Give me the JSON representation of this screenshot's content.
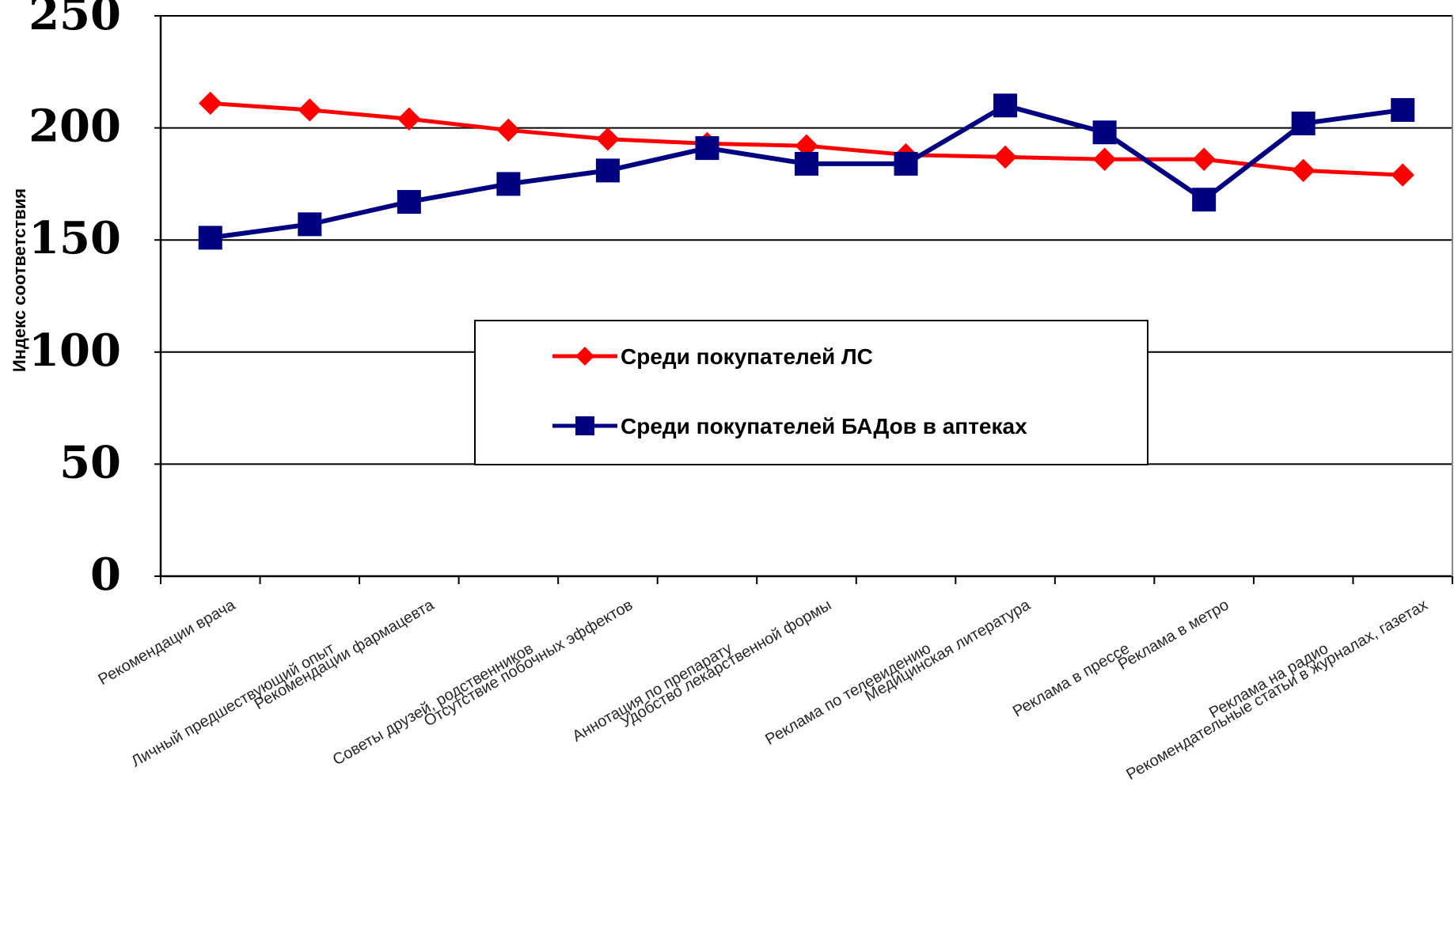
{
  "chart_data": {
    "type": "line",
    "ylabel": "Индекс соответствия",
    "ylim": [
      0,
      250
    ],
    "yticks": [
      "0",
      "50",
      "100",
      "150",
      "200",
      "250"
    ],
    "grid": true,
    "legend_position": "center",
    "categories": [
      "Рекомендации врача",
      "Личный предшествующий опыт",
      "Рекомендации фармацевта",
      "Советы друзей, родственников",
      "Отсутствие побочных эффектов",
      "Аннотация по препарату",
      "Удобство лекарственной формы",
      "Реклама по телевидению",
      "Медицинская литература",
      "Реклама в прессе",
      "Реклама в метро",
      "Реклама на радио",
      "Рекомендательные статьи в журналах, газетах"
    ],
    "series": [
      {
        "name": "Среди покупателей ЛС",
        "color": "#ff0000",
        "marker": "diamond",
        "values": [
          211,
          208,
          204,
          199,
          195,
          193,
          192,
          188,
          187,
          186,
          186,
          181,
          179
        ]
      },
      {
        "name": "Среди покупателей БАДов в аптеках",
        "color": "#000080",
        "marker": "square",
        "values": [
          151,
          157,
          167,
          175,
          181,
          191,
          184,
          184,
          210,
          198,
          168,
          202,
          208
        ]
      }
    ]
  }
}
